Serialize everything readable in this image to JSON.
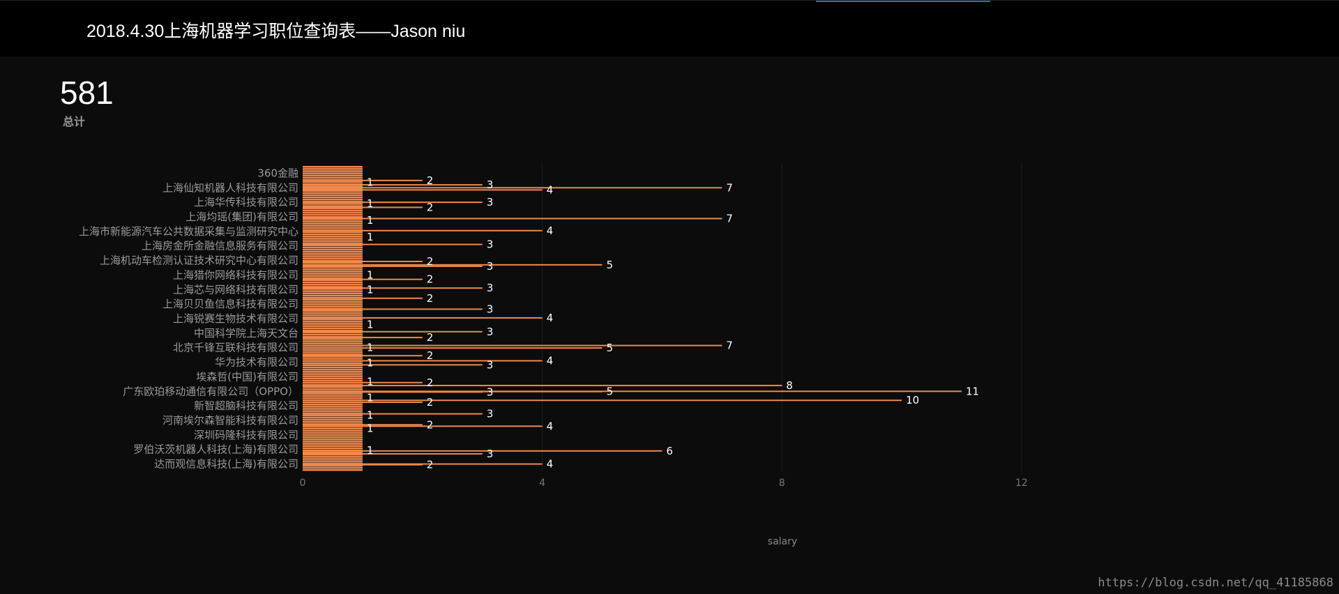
{
  "title": "2018.4.30上海机器学习职位查询表——Jason niu",
  "kpi": {
    "value": "581",
    "label": "总计"
  },
  "watermark": "https://blog.csdn.net/qq_41185868",
  "colors": {
    "bar": "#f0884c",
    "background": "#0c0c0c",
    "header": "#000000",
    "label": "#9a9a9a",
    "value_label": "#ffffff",
    "grid": "#1f1f1f"
  },
  "chart_data": {
    "type": "bar",
    "orientation": "horizontal",
    "xlabel": "salary",
    "xlim": [
      0,
      12
    ],
    "xticks": [
      0,
      4,
      8,
      12
    ],
    "grid": true,
    "categories": [
      "360金融",
      "上海仙知机器人科技有限公司",
      "上海华传科技有限公司",
      "上海均瑶(集团)有限公司",
      "上海市新能源汽车公共数据采集与监测研究中心",
      "上海房金所金融信息服务有限公司",
      "上海机动车检测认证技术研究中心有限公司",
      "上海猎你网络科技有限公司",
      "上海芯与网络科技有限公司",
      "上海贝贝鱼信息科技有限公司",
      "上海锐赛生物技术有限公司",
      "中国科学院上海天文台",
      "北京千锋互联科技有限公司",
      "华为技术有限公司",
      "埃森哲(中国)有限公司",
      "广东欧珀移动通信有限公司（OPPO）",
      "新智超脑科技有限公司",
      "河南埃尔森智能科技有限公司",
      "深圳码隆科技有限公司",
      "罗伯沃茨机器人科技(上海)有限公司",
      "达而观信息科技(上海)有限公司"
    ],
    "data_labels": [
      {
        "value": 1,
        "category_pos": 0.63
      },
      {
        "value": 2,
        "category_pos": 0.5
      },
      {
        "value": 3,
        "category_pos": 0.8
      },
      {
        "value": 4,
        "category_pos": 1.15
      },
      {
        "value": 7,
        "category_pos": 1.0
      },
      {
        "value": 1,
        "category_pos": 2.1
      },
      {
        "value": 2,
        "category_pos": 2.35
      },
      {
        "value": 3,
        "category_pos": 2.0
      },
      {
        "value": 1,
        "category_pos": 3.23
      },
      {
        "value": 7,
        "category_pos": 3.12
      },
      {
        "value": 4,
        "category_pos": 3.95
      },
      {
        "value": 1,
        "category_pos": 4.4
      },
      {
        "value": 3,
        "category_pos": 4.9
      },
      {
        "value": 2,
        "category_pos": 6.07
      },
      {
        "value": 3,
        "category_pos": 6.4
      },
      {
        "value": 5,
        "category_pos": 6.3
      },
      {
        "value": 1,
        "category_pos": 7.0
      },
      {
        "value": 2,
        "category_pos": 7.3
      },
      {
        "value": 1,
        "category_pos": 8.0
      },
      {
        "value": 3,
        "category_pos": 7.9
      },
      {
        "value": 2,
        "category_pos": 8.6
      },
      {
        "value": 3,
        "category_pos": 9.35
      },
      {
        "value": 4,
        "category_pos": 9.95
      },
      {
        "value": 1,
        "category_pos": 10.4
      },
      {
        "value": 3,
        "category_pos": 10.9
      },
      {
        "value": 2,
        "category_pos": 11.3
      },
      {
        "value": 7,
        "category_pos": 11.85
      },
      {
        "value": 1,
        "category_pos": 11.98
      },
      {
        "value": 5,
        "category_pos": 12.02
      },
      {
        "value": 2,
        "category_pos": 12.55
      },
      {
        "value": 4,
        "category_pos": 12.9
      },
      {
        "value": 1,
        "category_pos": 13.05
      },
      {
        "value": 3,
        "category_pos": 13.18
      },
      {
        "value": 1,
        "category_pos": 14.35
      },
      {
        "value": 2,
        "category_pos": 14.4
      },
      {
        "value": 8,
        "category_pos": 14.6
      },
      {
        "value": 11,
        "category_pos": 15.0
      },
      {
        "value": 3,
        "category_pos": 15.05
      },
      {
        "value": 5,
        "category_pos": 15.02
      },
      {
        "value": 1,
        "category_pos": 15.45
      },
      {
        "value": 2,
        "category_pos": 15.75
      },
      {
        "value": 10,
        "category_pos": 15.62
      },
      {
        "value": 3,
        "category_pos": 16.55
      },
      {
        "value": 1,
        "category_pos": 16.65
      },
      {
        "value": 2,
        "category_pos": 17.3
      },
      {
        "value": 1,
        "category_pos": 17.55
      },
      {
        "value": 4,
        "category_pos": 17.4
      },
      {
        "value": 6,
        "category_pos": 19.1
      },
      {
        "value": 1,
        "category_pos": 19.05
      },
      {
        "value": 3,
        "category_pos": 19.3
      },
      {
        "value": 2,
        "category_pos": 20.05
      },
      {
        "value": 4,
        "category_pos": 20.0
      }
    ]
  }
}
